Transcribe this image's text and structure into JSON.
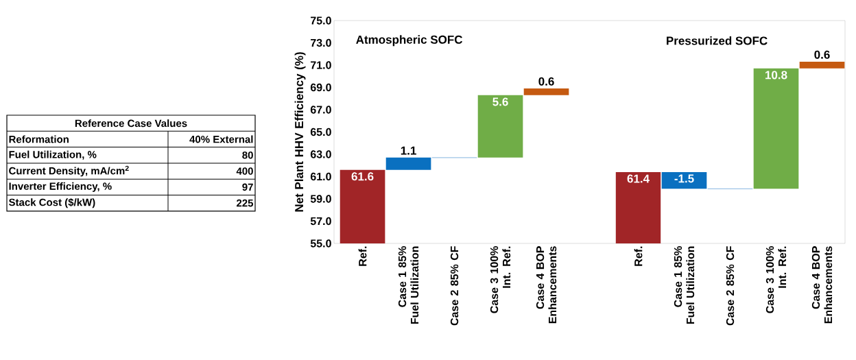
{
  "chart_data": [
    {
      "type": "bar",
      "ylabel": "Net Plant HHV Efficiency (%)",
      "categories": [
        "Ref.",
        "Case 1 85% Fuel Utilization",
        "Case 2 85% CF",
        "Case 3 100% Int. Ref.",
        "Case 4 BOP Enhancements",
        null,
        "Ref.",
        "Case 1 85% Fuel Utilization",
        "Case 2 85% CF",
        "Case 3 100% Int. Ref.",
        "Case 4 BOP Enhancements"
      ],
      "values": [
        61.6,
        1.1,
        0,
        5.6,
        0.6,
        null,
        61.4,
        -1.5,
        0,
        10.8,
        0.6
      ],
      "base": [
        0,
        61.6,
        62.7,
        62.7,
        68.3,
        null,
        0,
        61.4,
        59.9,
        59.9,
        70.7
      ],
      "colors": [
        "#a12527",
        "#0a70c0",
        "#9dc3e6",
        "#70ad47",
        "#c55a11",
        null,
        "#a12527",
        "#0a70c0",
        "#9dc3e6",
        "#70ad47",
        "#c55a11"
      ],
      "value_labels": [
        "61.6",
        "1.1",
        null,
        "5.6",
        "0.6",
        null,
        "61.4",
        "-1.5",
        null,
        "10.8",
        "0.6"
      ],
      "ylim": [
        55,
        75
      ],
      "yticks": [
        {
          "value": 55,
          "label": "55.0"
        },
        {
          "value": 57,
          "label": "57.0"
        },
        {
          "value": 59,
          "label": "59.0"
        },
        {
          "value": 61,
          "label": "61.0"
        },
        {
          "value": 63,
          "label": "63.0"
        },
        {
          "value": 65,
          "label": "65.0"
        },
        {
          "value": 67,
          "label": "67.0"
        },
        {
          "value": 69,
          "label": "69.0"
        },
        {
          "value": 71,
          "label": "71.0"
        },
        {
          "value": 73,
          "label": "73.0"
        },
        {
          "value": 75,
          "label": "75.0"
        }
      ],
      "annotations": [
        "Atmospheric  SOFC",
        "Pressurized  SOFC"
      ]
    },
    {
      "type": "other",
      "title": "Reference Case Values",
      "annotations": [
        "Reformation",
        "40% External",
        "Fuel Utilization, %",
        "80",
        "Current Density, mA/cm$^{2}$",
        "400",
        "Inverter Efficiency, %",
        "97",
        "Stack Cost ($/kW)",
        "225"
      ]
    }
  ]
}
